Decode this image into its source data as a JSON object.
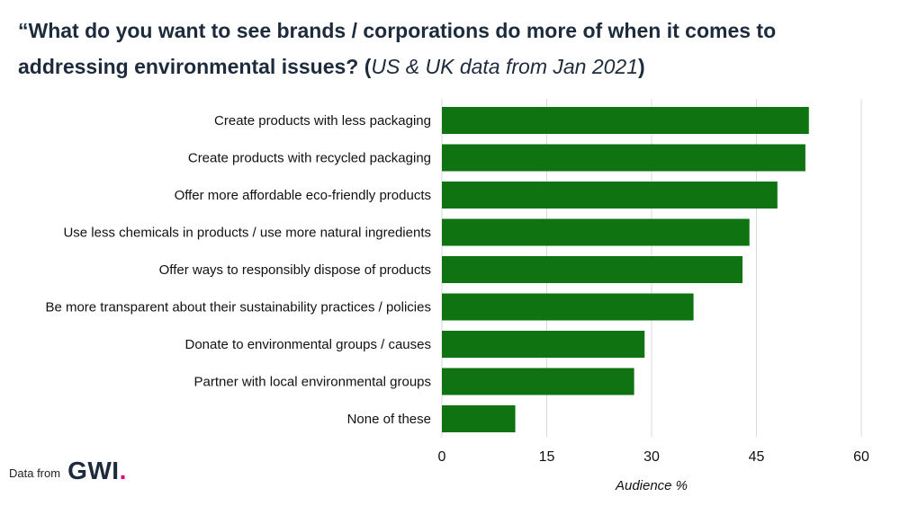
{
  "title": {
    "main": "“What do you want to see brands / corporations do more of when it comes to addressing environmental issues? (",
    "note": "US & UK data from Jan 2021",
    "close": ")"
  },
  "footer": {
    "label": "Data from",
    "logo_text": "GWI",
    "logo_dot": "."
  },
  "colors": {
    "bar": "#0e7310",
    "title": "#1e2b3c",
    "grid": "#d9d9d9",
    "logo_dot": "#e3007e"
  },
  "chart_data": {
    "type": "bar",
    "orientation": "horizontal",
    "categories": [
      "Create products with less packaging",
      "Create products with recycled packaging",
      "Offer more affordable eco-friendly products",
      "Use less chemicals in products / use more natural ingredients",
      "Offer ways to responsibly dispose of products",
      "Be more transparent about their sustainability practices / policies",
      "Donate to environmental groups / causes",
      "Partner with local environmental groups",
      "None of these"
    ],
    "values": [
      52.5,
      52,
      48,
      44,
      43,
      36,
      29,
      27.5,
      10.5
    ],
    "xlabel": "Audience %",
    "ylabel": "",
    "xlim": [
      0,
      60
    ],
    "xticks": [
      0,
      15,
      30,
      45,
      60
    ],
    "grid": true
  }
}
